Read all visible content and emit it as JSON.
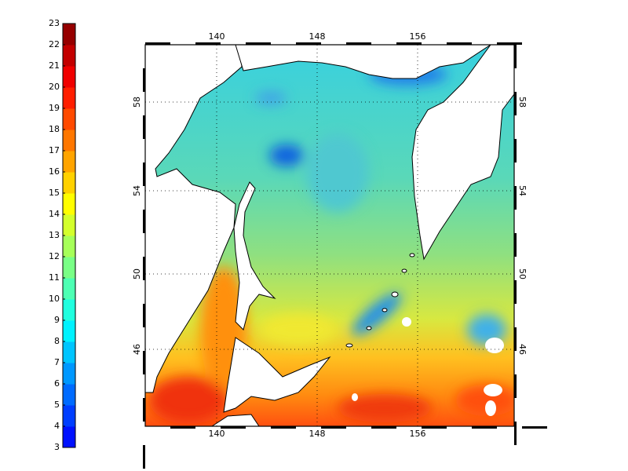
{
  "colorbar": {
    "ticks": [
      3,
      4,
      5,
      6,
      7,
      8,
      9,
      10,
      11,
      12,
      13,
      14,
      15,
      16,
      17,
      18,
      19,
      20,
      21,
      22,
      23
    ]
  },
  "map": {
    "lon_ticks": [
      140,
      148,
      156
    ],
    "lat_ticks": [
      58,
      54,
      50,
      46
    ]
  }
}
